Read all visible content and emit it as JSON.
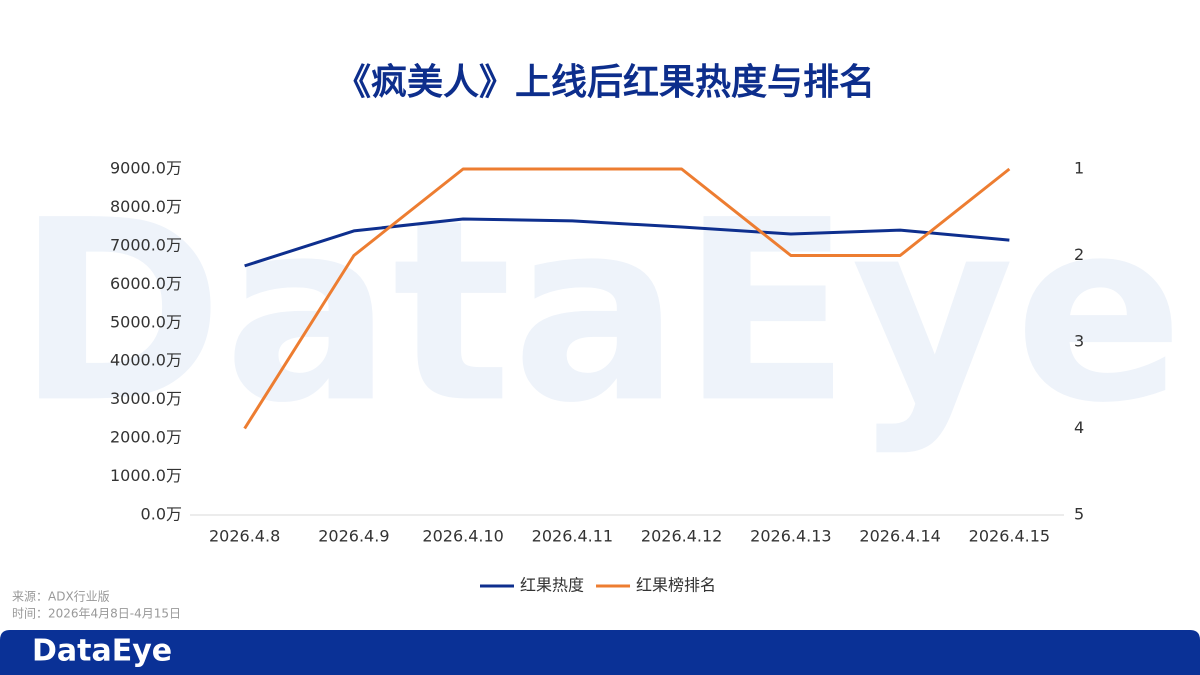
{
  "chart_data": {
    "type": "line",
    "title": "《疯美人》上线后红果热度与排名",
    "watermark": "DataEye",
    "source": "来源：ADX行业版",
    "time_range": "时间：2026年4月8日-4月15日",
    "brand": "DataEye",
    "categories": [
      "2026.4.8",
      "2026.4.9",
      "2026.4.10",
      "2026.4.11",
      "2026.4.12",
      "2026.4.13",
      "2026.4.14",
      "2026.4.15"
    ],
    "series": [
      {
        "name": "红果热度",
        "color": "#0e2f8e",
        "values": [
          6480,
          7390,
          7700,
          7650,
          7490,
          7310,
          7410,
          7150
        ]
      },
      {
        "name": "红果榜排名",
        "color": "#ed7d31",
        "axis": "y2",
        "values": [
          4,
          2,
          1,
          1,
          1,
          2,
          2,
          1
        ]
      }
    ],
    "ylim": [
      0,
      9000
    ],
    "yticks": [
      {
        "value": 0,
        "label": "0.0万"
      },
      {
        "value": 1000,
        "label": "1000.0万"
      },
      {
        "value": 2000,
        "label": "2000.0万"
      },
      {
        "value": 3000,
        "label": "3000.0万"
      },
      {
        "value": 4000,
        "label": "4000.0万"
      },
      {
        "value": 5000,
        "label": "5000.0万"
      },
      {
        "value": 6000,
        "label": "6000.0万"
      },
      {
        "value": 7000,
        "label": "7000.0万"
      },
      {
        "value": 8000,
        "label": "8000.0万"
      },
      {
        "value": 9000,
        "label": "9000.0万"
      }
    ],
    "y2lim": [
      5,
      1
    ],
    "y2ticks": [
      1,
      2,
      3,
      4,
      5
    ],
    "grid": false,
    "legend": "bottom"
  }
}
